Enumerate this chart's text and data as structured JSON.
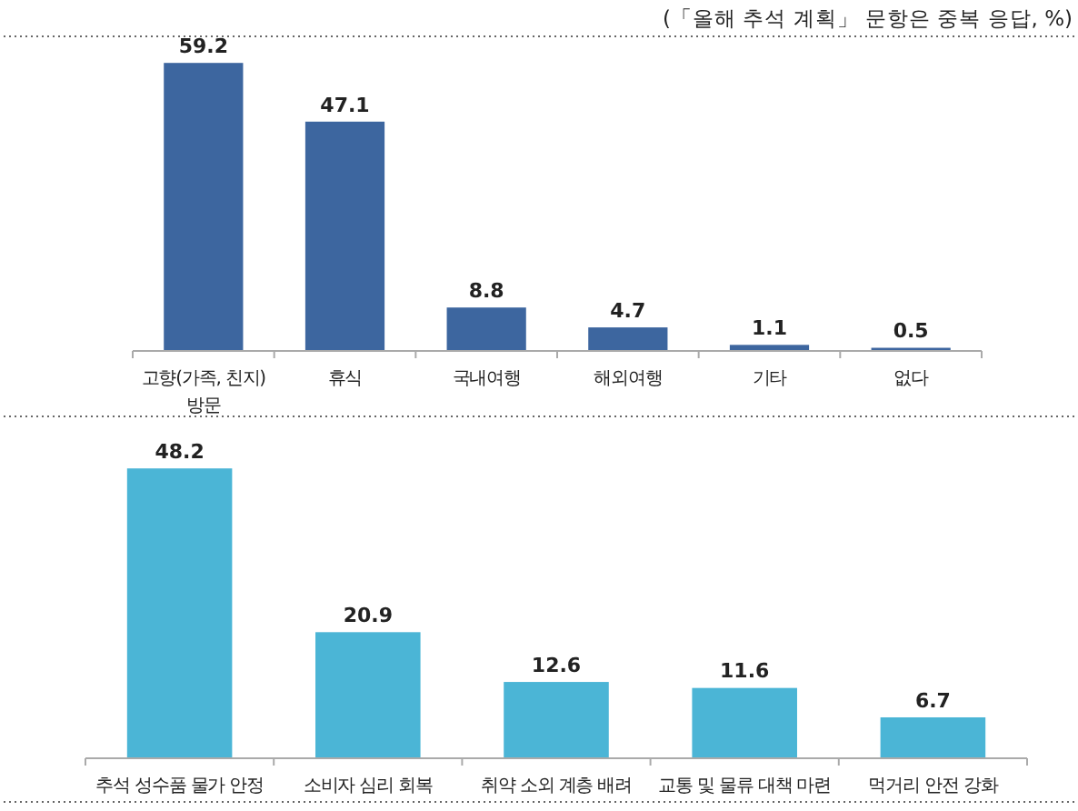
{
  "chart_data": [
    {
      "type": "bar",
      "annotations": [
        "(「올해 추석 계획」 문항은 중복 응답, %)"
      ],
      "categories": [
        "고향(가족, 친지) 방문",
        "휴식",
        "국내여행",
        "해외여행",
        "기타",
        "없다"
      ],
      "values": [
        59.2,
        47.1,
        8.8,
        4.7,
        1.1,
        0.5
      ],
      "color": "#3d669f",
      "data_labels": true
    },
    {
      "type": "bar",
      "categories": [
        "추석 성수품 물가 안정",
        "소비자 심리 회복",
        "취약 소외 계층 배려",
        "교통 및 물류 대책 마련",
        "먹거리 안전 강화"
      ],
      "values": [
        48.2,
        20.9,
        12.6,
        11.6,
        6.7
      ],
      "color": "#4bb5d6",
      "data_labels": true
    }
  ]
}
